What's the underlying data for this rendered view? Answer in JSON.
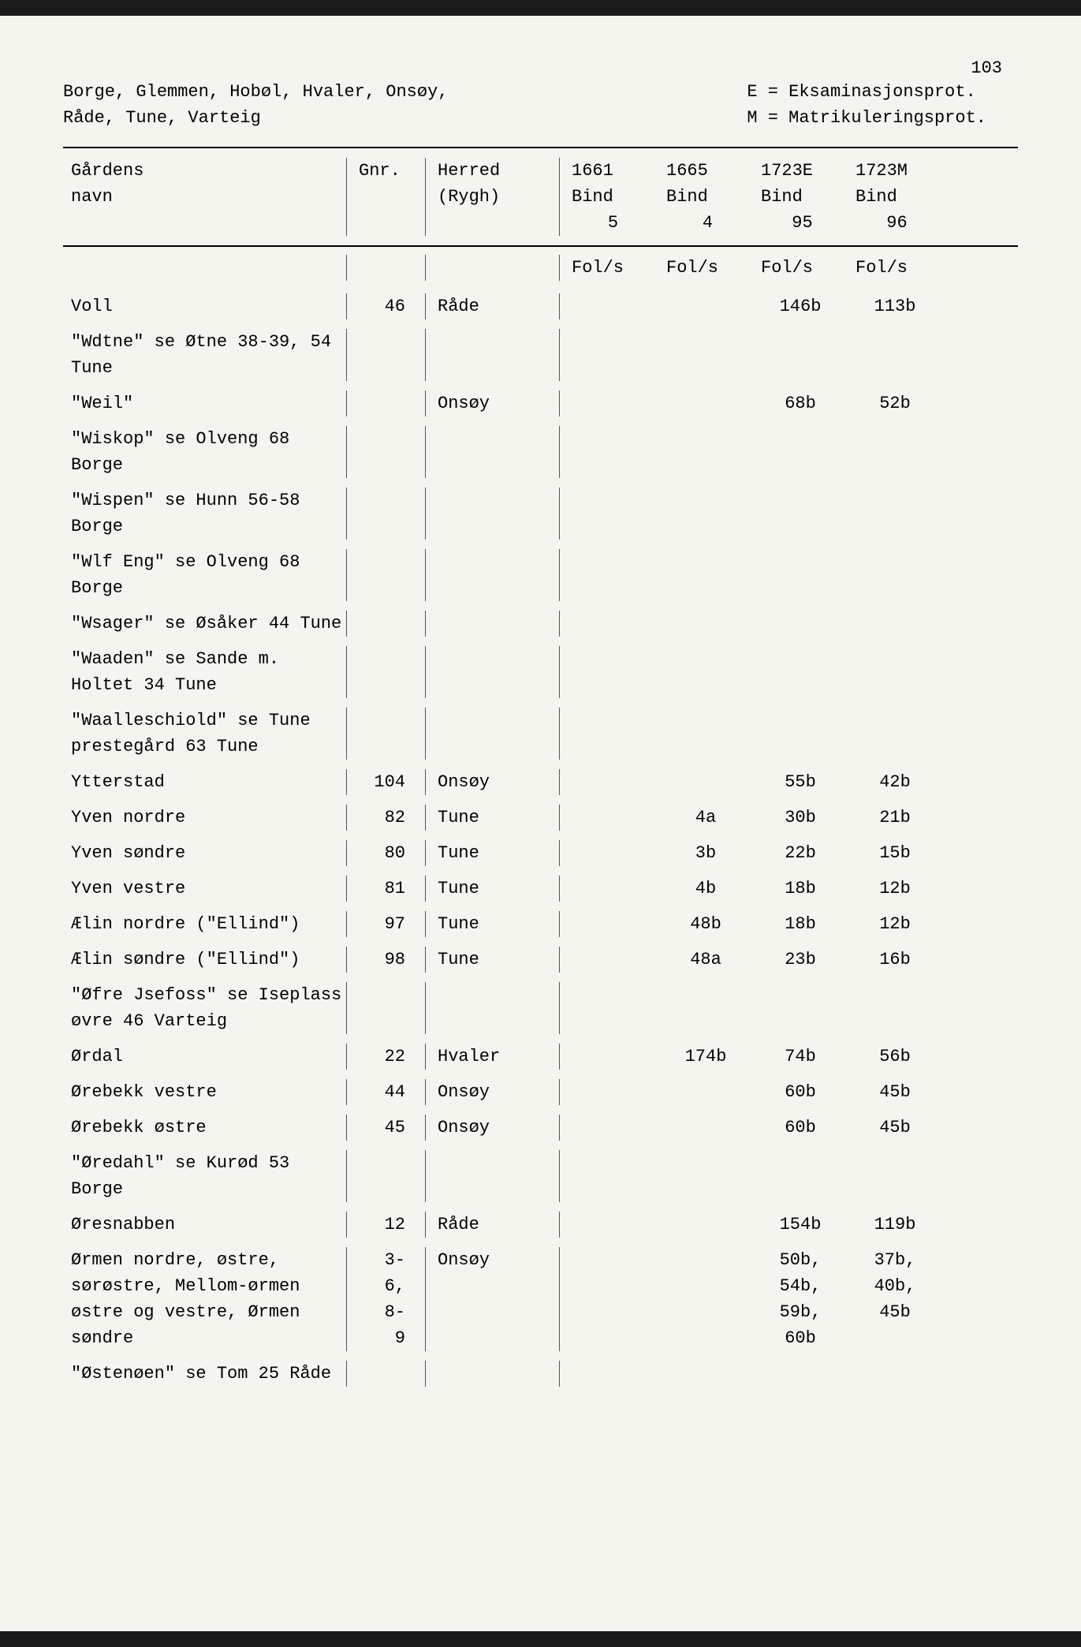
{
  "page_number": "103",
  "header": {
    "left_line1": "Borge, Glemmen, Hobøl, Hvaler, Onsøy,",
    "left_line2": "Råde, Tune, Varteig",
    "right_line1": "E = Eksaminasjonsprot.",
    "right_line2": "M = Matrikuleringsprot."
  },
  "table_header": {
    "col1_line1": "Gårdens",
    "col1_line2": "navn",
    "col2": "Gnr.",
    "col3_line1": "Herred",
    "col3_line2": "(Rygh)",
    "col4_line1": "1661",
    "col4_line2": "Bind",
    "col4_line3": "5",
    "col5_line1": "1665",
    "col5_line2": "Bind",
    "col5_line3": "4",
    "col6_line1": "1723E",
    "col6_line2": "Bind",
    "col6_line3": "95",
    "col7_line1": "1723M",
    "col7_line2": "Bind",
    "col7_line3": "96"
  },
  "subheader": {
    "col4": "Fol/s",
    "col5": "Fol/s",
    "col6": "Fol/s",
    "col7": "Fol/s"
  },
  "rows": [
    {
      "name": "Voll",
      "gnr": "46",
      "herred": "Råde",
      "c1661": "",
      "c1665": "",
      "c1723e": "146b",
      "c1723m": "113b"
    },
    {
      "name": "\"Wdtne\" se Øtne 38-39, 54 Tune",
      "gnr": "",
      "herred": "",
      "c1661": "",
      "c1665": "",
      "c1723e": "",
      "c1723m": ""
    },
    {
      "name": "\"Weil\"",
      "gnr": "",
      "herred": "Onsøy",
      "c1661": "",
      "c1665": "",
      "c1723e": "68b",
      "c1723m": "52b"
    },
    {
      "name": "\"Wiskop\" se Olveng 68 Borge",
      "gnr": "",
      "herred": "",
      "c1661": "",
      "c1665": "",
      "c1723e": "",
      "c1723m": ""
    },
    {
      "name": "\"Wispen\" se Hunn 56-58 Borge",
      "gnr": "",
      "herred": "",
      "c1661": "",
      "c1665": "",
      "c1723e": "",
      "c1723m": ""
    },
    {
      "name": "\"Wlf Eng\" se Olveng 68 Borge",
      "gnr": "",
      "herred": "",
      "c1661": "",
      "c1665": "",
      "c1723e": "",
      "c1723m": ""
    },
    {
      "name": "\"Wsager\" se Øsåker 44 Tune",
      "gnr": "",
      "herred": "",
      "c1661": "",
      "c1665": "",
      "c1723e": "",
      "c1723m": ""
    },
    {
      "name": "\"Waaden\" se Sande m. Holtet 34 Tune",
      "gnr": "",
      "herred": "",
      "c1661": "",
      "c1665": "",
      "c1723e": "",
      "c1723m": ""
    },
    {
      "name": "\"Waalleschiold\" se Tune prestegård 63 Tune",
      "gnr": "",
      "herred": "",
      "c1661": "",
      "c1665": "",
      "c1723e": "",
      "c1723m": ""
    },
    {
      "name": "Ytterstad",
      "gnr": "104",
      "herred": "Onsøy",
      "c1661": "",
      "c1665": "",
      "c1723e": "55b",
      "c1723m": "42b"
    },
    {
      "name": "Yven nordre",
      "gnr": "82",
      "herred": "Tune",
      "c1661": "",
      "c1665": "4a",
      "c1723e": "30b",
      "c1723m": "21b"
    },
    {
      "name": "Yven søndre",
      "gnr": "80",
      "herred": "Tune",
      "c1661": "",
      "c1665": "3b",
      "c1723e": "22b",
      "c1723m": "15b"
    },
    {
      "name": "Yven vestre",
      "gnr": "81",
      "herred": "Tune",
      "c1661": "",
      "c1665": "4b",
      "c1723e": "18b",
      "c1723m": "12b"
    },
    {
      "name": "Ælin nordre (\"Ellind\")",
      "gnr": "97",
      "herred": "Tune",
      "c1661": "",
      "c1665": "48b",
      "c1723e": "18b",
      "c1723m": "12b"
    },
    {
      "name": "Ælin søndre (\"Ellind\")",
      "gnr": "98",
      "herred": "Tune",
      "c1661": "",
      "c1665": "48a",
      "c1723e": "23b",
      "c1723m": "16b"
    },
    {
      "name": "\"Øfre Jsefoss\" se Iseplass øvre 46 Varteig",
      "gnr": "",
      "herred": "",
      "c1661": "",
      "c1665": "",
      "c1723e": "",
      "c1723m": ""
    },
    {
      "name": "Ørdal",
      "gnr": "22",
      "herred": "Hvaler",
      "c1661": "",
      "c1665": "174b",
      "c1723e": "74b",
      "c1723m": "56b"
    },
    {
      "name": "Ørebekk vestre",
      "gnr": "44",
      "herred": "Onsøy",
      "c1661": "",
      "c1665": "",
      "c1723e": "60b",
      "c1723m": "45b"
    },
    {
      "name": "Ørebekk østre",
      "gnr": "45",
      "herred": "Onsøy",
      "c1661": "",
      "c1665": "",
      "c1723e": "60b",
      "c1723m": "45b"
    },
    {
      "name": "\"Øredahl\" se Kurød 53 Borge",
      "gnr": "",
      "herred": "",
      "c1661": "",
      "c1665": "",
      "c1723e": "",
      "c1723m": ""
    },
    {
      "name": "Øresnabben",
      "gnr": "12",
      "herred": "Råde",
      "c1661": "",
      "c1665": "",
      "c1723e": "154b",
      "c1723m": "119b"
    },
    {
      "name": "Ørmen nordre, østre, sørøstre, Mellom-ørmen østre og vestre, Ørmen søndre",
      "gnr": "3-\n6,\n8-\n9",
      "herred": "Onsøy",
      "c1661": "",
      "c1665": "",
      "c1723e": "50b,\n54b,\n59b,\n60b",
      "c1723m": "37b,\n40b,\n45b"
    },
    {
      "name": "\"Østenøen\" se Tom 25 Råde",
      "gnr": "",
      "herred": "",
      "c1661": "",
      "c1665": "",
      "c1723e": "",
      "c1723m": ""
    }
  ],
  "colors": {
    "page_bg": "#f5f5f0",
    "outer_bg": "#1a1a1a",
    "text": "#000000",
    "rule": "#000000"
  },
  "typography": {
    "font_family": "Courier New",
    "font_size_pt": 16
  }
}
